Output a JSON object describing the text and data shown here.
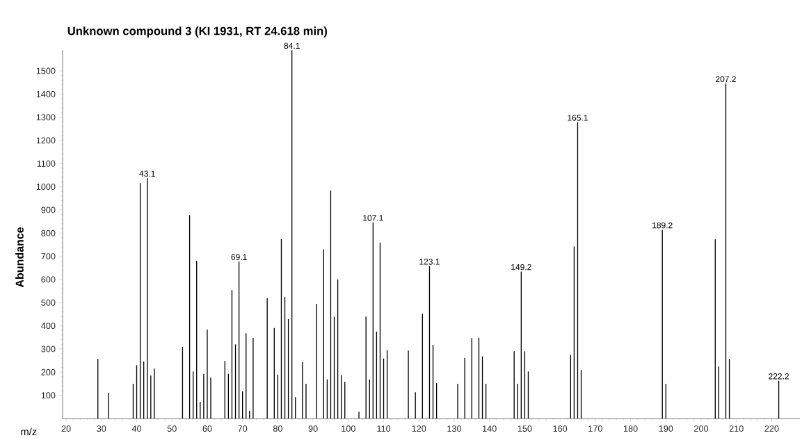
{
  "chart_data": {
    "type": "bar",
    "title": "Unknown compound 3 (KI 1931, RT 24.618 min)",
    "xlabel": "m/z",
    "ylabel": "Abundance",
    "color": "#000000",
    "x": [
      29,
      32,
      39,
      40,
      41,
      42,
      43,
      44,
      45,
      53,
      55,
      56,
      57,
      58,
      59,
      60,
      61,
      65,
      66,
      67,
      68,
      69,
      70,
      71,
      72,
      73,
      77,
      79,
      80,
      81,
      82,
      83,
      84,
      85,
      87,
      88,
      91,
      93,
      94,
      95,
      96,
      97,
      98,
      99,
      103,
      105,
      106,
      107,
      108,
      109,
      110,
      111,
      117,
      119,
      121,
      123,
      124,
      125,
      131,
      133,
      135,
      137,
      138,
      139,
      147,
      148,
      149,
      150,
      151,
      163,
      164,
      165,
      166,
      189,
      190,
      204,
      205,
      207,
      208,
      222
    ],
    "values": [
      257,
      110,
      150,
      230,
      1016,
      246,
      1037,
      185,
      216,
      309,
      878,
      203,
      680,
      72,
      193,
      384,
      176,
      248,
      193,
      554,
      320,
      677,
      117,
      368,
      34,
      348,
      519,
      391,
      190,
      775,
      524,
      429,
      1589,
      92,
      243,
      150,
      495,
      730,
      169,
      984,
      439,
      600,
      187,
      158,
      29,
      440,
      169,
      846,
      375,
      759,
      259,
      295,
      293,
      113,
      452,
      657,
      318,
      153,
      150,
      262,
      347,
      349,
      268,
      150,
      290,
      150,
      634,
      290,
      203,
      275,
      743,
      1278,
      209,
      814,
      150,
      773,
      225,
      1445,
      257,
      163
    ],
    "xlim": [
      19,
      228
    ],
    "ylim": [
      0,
      1590
    ],
    "xticks": [
      20,
      30,
      40,
      50,
      60,
      70,
      80,
      90,
      100,
      110,
      120,
      130,
      140,
      150,
      160,
      170,
      180,
      190,
      200,
      210,
      220
    ],
    "yticks": [
      100,
      200,
      300,
      400,
      500,
      600,
      700,
      800,
      900,
      1000,
      1100,
      1200,
      1300,
      1400,
      1500
    ],
    "annotations": [
      {
        "text": "43.1",
        "x": 43,
        "y": 1037
      },
      {
        "text": "69.1",
        "x": 69,
        "y": 677
      },
      {
        "text": "84.1",
        "x": 84,
        "y": 1589
      },
      {
        "text": "107.1",
        "x": 107,
        "y": 846
      },
      {
        "text": "123.1",
        "x": 123,
        "y": 657
      },
      {
        "text": "149.2",
        "x": 149,
        "y": 634
      },
      {
        "text": "165.1",
        "x": 165,
        "y": 1278
      },
      {
        "text": "189.2",
        "x": 189,
        "y": 814
      },
      {
        "text": "207.2",
        "x": 207,
        "y": 1445
      },
      {
        "text": "222.2",
        "x": 222,
        "y": 163
      }
    ]
  }
}
